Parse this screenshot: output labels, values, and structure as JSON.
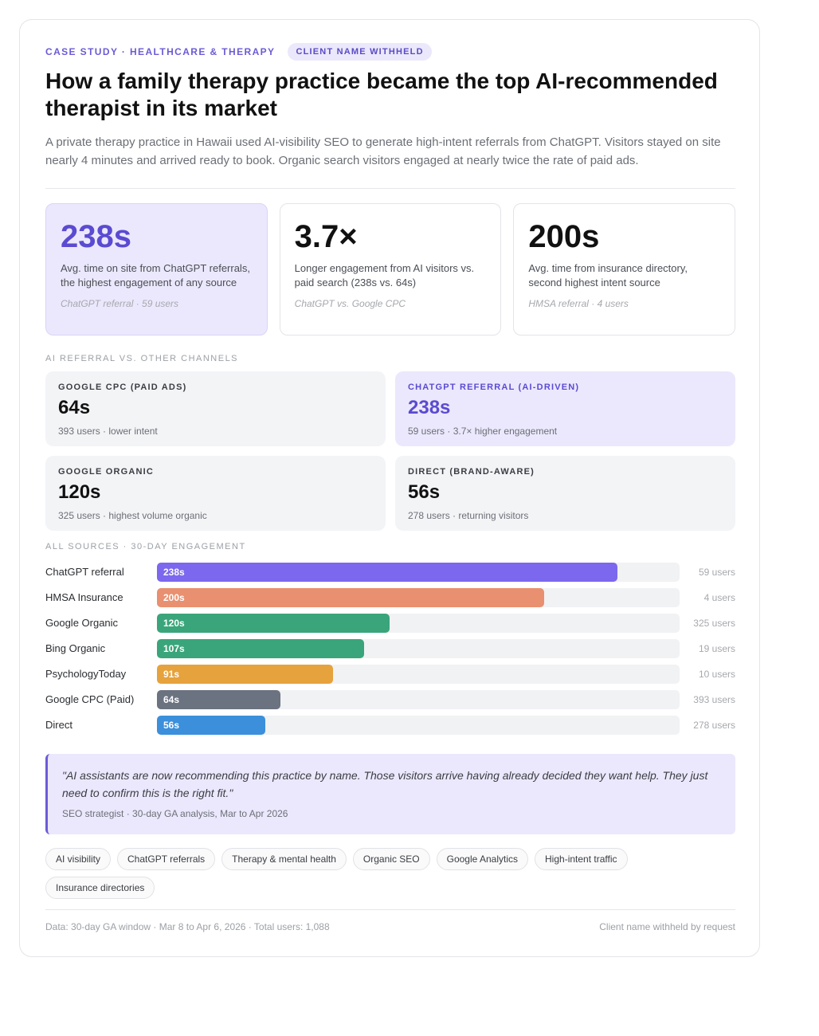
{
  "header": {
    "eyebrow": "CASE STUDY · HEALTHCARE & THERAPY",
    "badge": "CLIENT NAME WITHHELD",
    "title": "How a family therapy practice became the top AI-recommended therapist in its market",
    "subtitle": "A private therapy practice in Hawaii used AI-visibility SEO to generate high-intent referrals from ChatGPT. Visitors stayed on site nearly 4 minutes and arrived ready to book. Organic search visitors engaged at nearly twice the rate of paid ads."
  },
  "stats": [
    {
      "value": "238s",
      "desc": "Avg. time on site from ChatGPT referrals, the highest engagement of any source",
      "source": "ChatGPT referral · 59 users"
    },
    {
      "value": "3.7×",
      "desc": "Longer engagement from AI visitors vs. paid search (238s vs. 64s)",
      "source": "ChatGPT vs. Google CPC"
    },
    {
      "value": "200s",
      "desc": "Avg. time from insurance directory, second highest intent source",
      "source": "HMSA referral · 4 users"
    }
  ],
  "comparison": {
    "label": "AI REFERRAL VS. OTHER CHANNELS",
    "channels": [
      {
        "name": "GOOGLE CPC (PAID ADS)",
        "value": "64s",
        "sub": "393 users · lower intent"
      },
      {
        "name": "CHATGPT REFERRAL (AI-DRIVEN)",
        "value": "238s",
        "sub": "59 users · 3.7× higher engagement"
      },
      {
        "name": "GOOGLE ORGANIC",
        "value": "120s",
        "sub": "325 users · highest volume organic"
      },
      {
        "name": "DIRECT (BRAND-AWARE)",
        "value": "56s",
        "sub": "278 users · returning visitors"
      }
    ]
  },
  "chart_data": {
    "type": "bar",
    "title": "ALL SOURCES · 30-DAY ENGAGEMENT",
    "orientation": "horizontal",
    "categories": [
      "ChatGPT referral",
      "HMSA Insurance",
      "Google Organic",
      "Bing Organic",
      "PsychologyToday",
      "Google CPC (Paid)",
      "Direct"
    ],
    "values": [
      238,
      200,
      120,
      107,
      91,
      64,
      56
    ],
    "value_labels": [
      "238s",
      "200s",
      "120s",
      "107s",
      "91s",
      "64s",
      "56s"
    ],
    "users": [
      "59 users",
      "4 users",
      "325 users",
      "19 users",
      "10 users",
      "393 users",
      "278 users"
    ],
    "colors": [
      "#7b68ee",
      "#e8906f",
      "#3aa57a",
      "#3aa57a",
      "#e6a23c",
      "#6b7280",
      "#3b8fdb"
    ],
    "xlim": [
      0,
      270
    ]
  },
  "quote": {
    "text": "\"AI assistants are now recommending this practice by name. Those visitors arrive having already decided they want help. They just need to confirm this is the right fit.\"",
    "attribution": "SEO strategist · 30-day GA analysis, Mar to Apr 2026"
  },
  "tags": [
    "AI visibility",
    "ChatGPT referrals",
    "Therapy & mental health",
    "Organic SEO",
    "Google Analytics",
    "High-intent traffic",
    "Insurance directories"
  ],
  "footer": {
    "left": "Data: 30-day GA window · Mar 8 to Apr 6, 2026 · Total users: 1,088",
    "right": "Client name withheld by request"
  }
}
